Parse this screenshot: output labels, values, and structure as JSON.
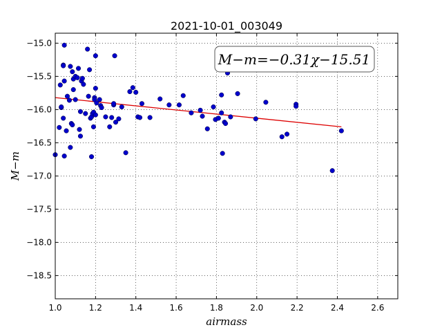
{
  "chart_data": {
    "type": "scatter",
    "title": "2021-10-01_003049",
    "xlabel": "airmass",
    "ylabel": "M−m",
    "xlim": [
      1.0,
      2.7
    ],
    "ylim": [
      -18.85,
      -14.85
    ],
    "y_inverted": true,
    "grid": true,
    "x_ticks": [
      1.0,
      1.2,
      1.4,
      1.6,
      1.8,
      2.0,
      2.2,
      2.4,
      2.6
    ],
    "x_tick_labels": [
      "1.0",
      "1.2",
      "1.4",
      "1.6",
      "1.8",
      "2.0",
      "2.2",
      "2.4",
      "2.6"
    ],
    "y_ticks": [
      -15.0,
      -15.5,
      -16.0,
      -16.5,
      -17.0,
      -17.5,
      -18.0,
      -18.5
    ],
    "y_tick_labels": [
      "−15.0",
      "−15.5",
      "−16.0",
      "−16.5",
      "−17.0",
      "−17.5",
      "−18.0",
      "−18.5"
    ],
    "point_color": "#0000cc",
    "fit_color": "#dd0000",
    "annotation": "M−m=−0.31χ−15.51",
    "fit": {
      "slope": -0.31,
      "intercept": -15.51,
      "x_range": [
        1.0,
        2.42
      ]
    },
    "points": [
      [
        1.0,
        -16.68
      ],
      [
        1.02,
        -16.27
      ],
      [
        1.025,
        -15.63
      ],
      [
        1.03,
        -15.97
      ],
      [
        1.03,
        -15.96
      ],
      [
        1.04,
        -15.33
      ],
      [
        1.04,
        -15.34
      ],
      [
        1.045,
        -15.03
      ],
      [
        1.045,
        -15.57
      ],
      [
        1.04,
        -16.13
      ],
      [
        1.045,
        -16.7
      ],
      [
        1.055,
        -16.32
      ],
      [
        1.06,
        -15.8
      ],
      [
        1.07,
        -15.86
      ],
      [
        1.075,
        -15.35
      ],
      [
        1.075,
        -16.57
      ],
      [
        1.08,
        -16.21
      ],
      [
        1.085,
        -16.23
      ],
      [
        1.085,
        -15.43
      ],
      [
        1.09,
        -15.7
      ],
      [
        1.09,
        -15.54
      ],
      [
        1.1,
        -15.85
      ],
      [
        1.1,
        -15.5
      ],
      [
        1.11,
        -15.52
      ],
      [
        1.115,
        -15.38
      ],
      [
        1.12,
        -16.3
      ],
      [
        1.125,
        -16.4
      ],
      [
        1.125,
        -16.03
      ],
      [
        1.13,
        -15.57
      ],
      [
        1.135,
        -15.53
      ],
      [
        1.14,
        -15.62
      ],
      [
        1.15,
        -16.06
      ],
      [
        1.16,
        -15.09
      ],
      [
        1.165,
        -15.8
      ],
      [
        1.17,
        -15.4
      ],
      [
        1.175,
        -16.13
      ],
      [
        1.18,
        -16.11
      ],
      [
        1.18,
        -16.71
      ],
      [
        1.185,
        -16.06
      ],
      [
        1.19,
        -16.04
      ],
      [
        1.19,
        -16.26
      ],
      [
        1.195,
        -15.82
      ],
      [
        1.195,
        -15.85
      ],
      [
        1.2,
        -15.19
      ],
      [
        1.2,
        -15.68
      ],
      [
        1.2,
        -16.08
      ],
      [
        1.205,
        -15.9
      ],
      [
        1.22,
        -15.85
      ],
      [
        1.225,
        -15.94
      ],
      [
        1.23,
        -15.97
      ],
      [
        1.25,
        -16.11
      ],
      [
        1.27,
        -16.26
      ],
      [
        1.28,
        -16.12
      ],
      [
        1.29,
        -15.93
      ],
      [
        1.29,
        -15.91
      ],
      [
        1.295,
        -15.19
      ],
      [
        1.3,
        -16.19
      ],
      [
        1.315,
        -16.14
      ],
      [
        1.33,
        -15.96
      ],
      [
        1.35,
        -16.65
      ],
      [
        1.37,
        -15.73
      ],
      [
        1.385,
        -15.67
      ],
      [
        1.4,
        -15.74
      ],
      [
        1.41,
        -16.11
      ],
      [
        1.42,
        -16.12
      ],
      [
        1.43,
        -15.91
      ],
      [
        1.47,
        -16.12
      ],
      [
        1.52,
        -15.84
      ],
      [
        1.565,
        -15.93
      ],
      [
        1.615,
        -15.93
      ],
      [
        1.635,
        -15.79
      ],
      [
        1.675,
        -16.05
      ],
      [
        1.72,
        -16.01
      ],
      [
        1.73,
        -16.1
      ],
      [
        1.755,
        -16.29
      ],
      [
        1.785,
        -15.96
      ],
      [
        1.795,
        -16.15
      ],
      [
        1.81,
        -16.13
      ],
      [
        1.825,
        -16.05
      ],
      [
        1.825,
        -15.78
      ],
      [
        1.83,
        -16.66
      ],
      [
        1.84,
        -16.19
      ],
      [
        1.845,
        -16.21
      ],
      [
        1.855,
        -15.45
      ],
      [
        1.87,
        -16.11
      ],
      [
        1.905,
        -15.76
      ],
      [
        1.995,
        -16.14
      ],
      [
        2.045,
        -15.89
      ],
      [
        2.125,
        -16.41
      ],
      [
        2.15,
        -16.37
      ],
      [
        2.195,
        -15.92
      ],
      [
        2.195,
        -15.95
      ],
      [
        2.375,
        -16.92
      ],
      [
        2.42,
        -16.32
      ]
    ]
  }
}
